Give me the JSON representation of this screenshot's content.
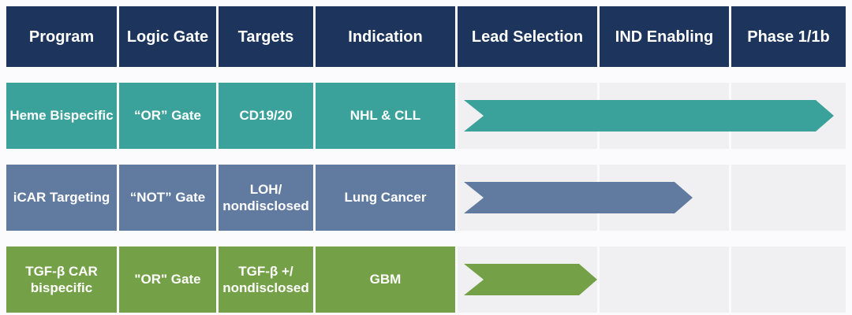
{
  "header": {
    "columns": [
      "Program",
      "Logic Gate",
      "Targets",
      "Indication",
      "Lead Selection",
      "IND Enabling",
      "Phase 1/1b"
    ]
  },
  "colors": {
    "header_bg": "#1d355c",
    "header_text": "#ffffff",
    "row_text": "#ffffff",
    "timeline_cell_bg": "#f0eff1",
    "page_bg": "#fbfbfd",
    "teal": "#3ba29b",
    "slate_blue": "#607aa0",
    "green": "#74a147"
  },
  "chart_data": {
    "type": "table",
    "subtype": "pipeline-progress-chart",
    "columns": [
      "Program",
      "Logic Gate",
      "Targets",
      "Indication",
      "Lead Selection",
      "IND Enabling",
      "Phase 1/1b"
    ],
    "stage_columns": [
      "Lead Selection",
      "IND Enabling",
      "Phase 1/1b"
    ],
    "rows": [
      {
        "program": "Heme Bispecific",
        "logic_gate": "“OR” Gate",
        "targets": "CD19/20",
        "indication": "NHL & CLL",
        "color": "#3ba29b",
        "progress_stage": "Phase 1/1b",
        "progress_note": "arrow spans Lead Selection through end of Phase 1/1b",
        "progress_fraction": 0.97
      },
      {
        "program": "iCAR Targeting",
        "logic_gate": "“NOT” Gate",
        "targets": "LOH/\nnondisclosed",
        "indication": "Lung Cancer",
        "color": "#607aa0",
        "progress_stage": "IND Enabling",
        "progress_note": "arrow spans Lead Selection through middle of IND Enabling",
        "progress_fraction": 0.6
      },
      {
        "program": "TGF-β CAR\nbispecific",
        "logic_gate": "\"OR\" Gate",
        "targets": "TGF-β +/\nnondisclosed",
        "indication": "GBM",
        "color": "#74a147",
        "progress_stage": "Lead Selection",
        "progress_note": "arrow spans to end of Lead Selection",
        "progress_fraction": 0.35
      }
    ]
  }
}
